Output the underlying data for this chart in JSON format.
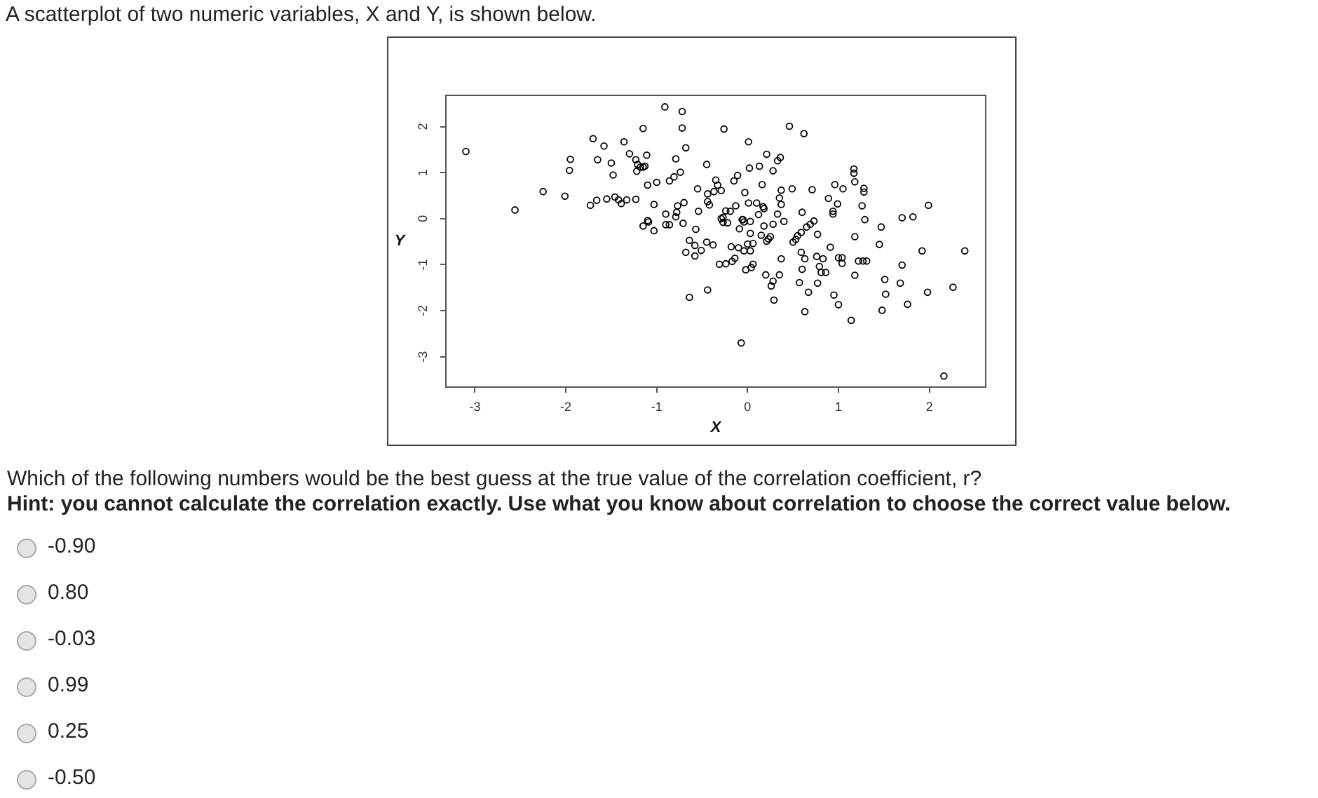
{
  "chart_data": {
    "type": "scatter",
    "title": "A scatterplot of two numeric variables, X and Y, is shown below.",
    "xlabel": "X",
    "ylabel": "Y",
    "x": [
      -3.1,
      -2.56,
      -2.25,
      -2.01,
      -1.95,
      -1.96,
      -1.73,
      -1.7,
      -1.65,
      -1.66,
      -1.58,
      -1.55,
      -1.5,
      -1.48,
      -1.46,
      -1.42,
      -1.39,
      -1.36,
      -1.33,
      -1.3,
      -1.23,
      -1.23,
      -1.21,
      -1.22,
      -1.18,
      -1.15,
      -1.15,
      -1.13,
      -1.11,
      -1.1,
      -1.1,
      -1.09,
      -1.15,
      -1.03,
      -1.03,
      -1.0,
      -0.91,
      -0.9,
      -0.9,
      -0.86,
      -0.86,
      -0.81,
      -0.79,
      -0.79,
      -0.78,
      -0.77,
      -0.74,
      -0.72,
      -0.72,
      -0.71,
      -0.7,
      -0.68,
      -0.68,
      -0.64,
      -0.64,
      -0.58,
      -0.58,
      -0.57,
      -0.55,
      -0.54,
      -0.51,
      -0.45,
      -0.44,
      -0.44,
      -0.45,
      -0.44,
      -0.42,
      -0.38,
      -0.37,
      -0.35,
      -0.33,
      -0.31,
      -0.29,
      -0.29,
      -0.27,
      -0.27,
      -0.26,
      -0.24,
      -0.24,
      -0.22,
      -0.19,
      -0.18,
      -0.17,
      -0.15,
      -0.14,
      -0.13,
      -0.11,
      -0.1,
      -0.09,
      -0.07,
      -0.06,
      -0.05,
      -0.04,
      -0.04,
      -0.03,
      -0.02,
      0.0,
      0.01,
      0.01,
      0.03,
      0.03,
      0.03,
      0.04,
      0.06,
      0.02,
      0.06,
      0.1,
      0.12,
      0.13,
      0.15,
      0.16,
      0.17,
      0.18,
      0.18,
      0.2,
      0.21,
      0.21,
      0.23,
      0.25,
      0.26,
      0.28,
      0.28,
      0.28,
      0.29,
      0.33,
      0.33,
      0.35,
      0.36,
      0.35,
      0.37,
      0.37,
      0.37,
      0.4,
      0.46,
      0.49,
      0.5,
      0.53,
      0.55,
      0.57,
      0.59,
      0.59,
      0.6,
      0.6,
      0.62,
      0.63,
      0.63,
      0.65,
      0.67,
      0.69,
      0.71,
      0.73,
      0.76,
      0.77,
      0.77,
      0.79,
      0.81,
      0.83,
      0.86,
      0.89,
      0.91,
      0.94,
      0.94,
      0.95,
      0.96,
      0.99,
      1.0,
      1.0,
      1.04,
      1.04,
      1.05,
      1.14,
      1.17,
      1.17,
      1.18,
      1.18,
      1.18,
      1.22,
      1.26,
      1.28,
      1.28,
      1.27,
      1.29,
      1.31,
      1.45,
      1.47,
      1.48,
      1.51,
      1.52,
      1.68,
      1.7,
      1.7,
      1.76,
      1.82,
      1.92,
      1.99,
      1.98,
      2.16,
      2.26,
      2.39
    ],
    "values": [
      1.46,
      0.19,
      0.59,
      0.49,
      1.29,
      1.05,
      0.29,
      1.74,
      1.28,
      0.4,
      1.58,
      0.43,
      1.21,
      0.95,
      0.47,
      0.41,
      0.33,
      1.67,
      0.41,
      1.41,
      0.42,
      1.28,
      1.18,
      1.03,
      1.12,
      1.96,
      1.12,
      1.14,
      1.38,
      0.73,
      -0.04,
      -0.07,
      -0.16,
      -0.26,
      0.31,
      0.79,
      2.43,
      0.1,
      -0.13,
      -0.13,
      0.82,
      0.91,
      1.3,
      0.04,
      0.14,
      0.28,
      1.01,
      1.97,
      2.33,
      -0.1,
      0.35,
      1.54,
      -0.73,
      -0.47,
      -1.71,
      -0.58,
      -0.81,
      -0.23,
      0.65,
      0.16,
      -0.69,
      -0.51,
      -1.55,
      0.37,
      1.18,
      0.54,
      0.3,
      -0.57,
      0.59,
      0.84,
      0.73,
      -0.99,
      0.61,
      0.0,
      0.03,
      -0.08,
      1.95,
      -0.98,
      0.17,
      -0.09,
      0.16,
      -0.61,
      -0.93,
      0.82,
      -0.86,
      0.28,
      0.94,
      -0.63,
      -0.22,
      -2.7,
      -0.02,
      -0.02,
      -0.07,
      -0.7,
      0.57,
      -1.11,
      -0.55,
      0.34,
      1.67,
      -0.32,
      -0.06,
      -0.7,
      -1.06,
      -0.99,
      1.1,
      -0.54,
      0.34,
      0.09,
      1.14,
      -0.36,
      0.74,
      0.26,
      0.22,
      -0.16,
      -1.22,
      1.4,
      -0.49,
      -0.44,
      -0.39,
      -1.46,
      -0.12,
      -1.36,
      1.04,
      -1.77,
      0.1,
      1.26,
      0.45,
      1.33,
      -1.22,
      0.62,
      0.31,
      -0.87,
      -0.06,
      2.01,
      0.65,
      -0.51,
      -0.45,
      -0.37,
      -1.39,
      -0.73,
      -0.3,
      0.14,
      -1.1,
      1.85,
      -0.87,
      -2.02,
      -0.18,
      -1.6,
      -0.12,
      0.63,
      -0.05,
      -0.82,
      -0.34,
      -1.4,
      -1.04,
      -1.17,
      -0.87,
      -1.17,
      0.44,
      -0.62,
      0.1,
      0.16,
      -1.66,
      0.74,
      0.32,
      -0.85,
      -1.87,
      -0.85,
      -0.97,
      0.65,
      -2.21,
      1.08,
      0.99,
      0.8,
      -0.39,
      -1.23,
      -0.92,
      0.28,
      0.66,
      0.58,
      -0.92,
      -0.02,
      -0.92,
      -0.56,
      -0.18,
      -1.99,
      -1.32,
      -1.64,
      -1.4,
      0.02,
      -1.01,
      -1.86,
      0.04,
      -0.7,
      0.29,
      -1.6,
      -3.42,
      -1.49,
      -0.7
    ],
    "color": "#000000",
    "marker": "circle",
    "grid": false,
    "xlim": [
      -3.32,
      2.62
    ],
    "ylim": [
      -3.66,
      2.68
    ],
    "xticks": [
      -3,
      -2,
      -1,
      0,
      1,
      2
    ],
    "yticks": [
      -3,
      -2,
      -1,
      0,
      1,
      2
    ],
    "annotations": [
      "Which of the following numbers would be the best guess at the true value of the correlation coefficient, r?",
      "Hint: you cannot calculate the correlation exactly. Use what you know about correlation to choose the correct value below.",
      "-0.90",
      "0.80",
      "-0.03",
      "0.99",
      "0.25",
      "-0.50"
    ]
  }
}
